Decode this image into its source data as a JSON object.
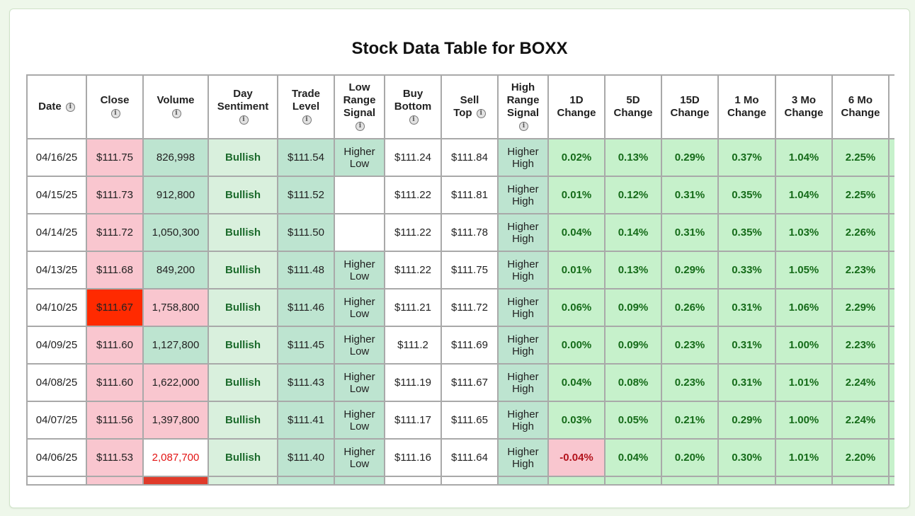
{
  "title": "Stock Data Table for BOXX",
  "columns": [
    {
      "key": "date",
      "lines": [
        "Date"
      ],
      "info": true,
      "inline_info": true
    },
    {
      "key": "close",
      "lines": [
        "Close"
      ],
      "info": true
    },
    {
      "key": "volume",
      "lines": [
        "Volume"
      ],
      "info": true
    },
    {
      "key": "day_sentiment",
      "lines": [
        "Day",
        "Sentiment"
      ],
      "info": true
    },
    {
      "key": "trade_level",
      "lines": [
        "Trade",
        "Level"
      ],
      "info": true
    },
    {
      "key": "low_range_signal",
      "lines": [
        "Low",
        "Range",
        "Signal"
      ],
      "info": true
    },
    {
      "key": "buy_bottom",
      "lines": [
        "Buy",
        "Bottom"
      ],
      "info": true
    },
    {
      "key": "sell_top",
      "lines": [
        "Sell",
        "Top"
      ],
      "info": true,
      "inline_info": true
    },
    {
      "key": "high_range_signal",
      "lines": [
        "High",
        "Range",
        "Signal"
      ],
      "info": true
    },
    {
      "key": "change_1d",
      "lines": [
        "1D",
        "Change"
      ],
      "info": false
    },
    {
      "key": "change_5d",
      "lines": [
        "5D",
        "Change"
      ],
      "info": false
    },
    {
      "key": "change_15d",
      "lines": [
        "15D",
        "Change"
      ],
      "info": false
    },
    {
      "key": "change_1mo",
      "lines": [
        "1 Mo",
        "Change"
      ],
      "info": false
    },
    {
      "key": "change_3mo",
      "lines": [
        "3 Mo",
        "Change"
      ],
      "info": false
    },
    {
      "key": "change_6mo",
      "lines": [
        "6 Mo",
        "Change"
      ],
      "info": false
    }
  ],
  "info_glyph": "i",
  "rows": [
    {
      "date": "04/16/25",
      "close": "$111.75",
      "close_style": "pink",
      "volume": "826,998",
      "volume_style": "teal",
      "day_sentiment": "Bullish",
      "trade_level": "$111.54",
      "low_range_signal": [
        "Higher",
        "Low"
      ],
      "buy_bottom": "$111.24",
      "sell_top": "$111.84",
      "high_range_signal": [
        "Higher",
        "High"
      ],
      "change_1d": "0.02%",
      "change_5d": "0.13%",
      "change_15d": "0.29%",
      "change_1mo": "0.37%",
      "change_3mo": "1.04%",
      "change_6mo": "2.25%"
    },
    {
      "date": "04/15/25",
      "close": "$111.73",
      "close_style": "pink",
      "volume": "912,800",
      "volume_style": "teal",
      "day_sentiment": "Bullish",
      "trade_level": "$111.52",
      "low_range_signal": [],
      "buy_bottom": "$111.22",
      "sell_top": "$111.81",
      "high_range_signal": [
        "Higher",
        "High"
      ],
      "change_1d": "0.01%",
      "change_5d": "0.12%",
      "change_15d": "0.31%",
      "change_1mo": "0.35%",
      "change_3mo": "1.04%",
      "change_6mo": "2.25%"
    },
    {
      "date": "04/14/25",
      "close": "$111.72",
      "close_style": "pink",
      "volume": "1,050,300",
      "volume_style": "teal",
      "day_sentiment": "Bullish",
      "trade_level": "$111.50",
      "low_range_signal": [],
      "buy_bottom": "$111.22",
      "sell_top": "$111.78",
      "high_range_signal": [
        "Higher",
        "High"
      ],
      "change_1d": "0.04%",
      "change_5d": "0.14%",
      "change_15d": "0.31%",
      "change_1mo": "0.35%",
      "change_3mo": "1.03%",
      "change_6mo": "2.26%"
    },
    {
      "date": "04/13/25",
      "close": "$111.68",
      "close_style": "pink",
      "volume": "849,200",
      "volume_style": "teal",
      "day_sentiment": "Bullish",
      "trade_level": "$111.48",
      "low_range_signal": [
        "Higher",
        "Low"
      ],
      "buy_bottom": "$111.22",
      "sell_top": "$111.75",
      "high_range_signal": [
        "Higher",
        "High"
      ],
      "change_1d": "0.01%",
      "change_5d": "0.13%",
      "change_15d": "0.29%",
      "change_1mo": "0.33%",
      "change_3mo": "1.05%",
      "change_6mo": "2.23%"
    },
    {
      "date": "04/10/25",
      "close": "$111.67",
      "close_style": "red",
      "volume": "1,758,800",
      "volume_style": "pink",
      "day_sentiment": "Bullish",
      "trade_level": "$111.46",
      "low_range_signal": [
        "Higher",
        "Low"
      ],
      "buy_bottom": "$111.21",
      "sell_top": "$111.72",
      "high_range_signal": [
        "Higher",
        "High"
      ],
      "change_1d": "0.06%",
      "change_5d": "0.09%",
      "change_15d": "0.26%",
      "change_1mo": "0.31%",
      "change_3mo": "1.06%",
      "change_6mo": "2.29%"
    },
    {
      "date": "04/09/25",
      "close": "$111.60",
      "close_style": "pink",
      "volume": "1,127,800",
      "volume_style": "teal",
      "day_sentiment": "Bullish",
      "trade_level": "$111.45",
      "low_range_signal": [
        "Higher",
        "Low"
      ],
      "buy_bottom": "$111.2",
      "sell_top": "$111.69",
      "high_range_signal": [
        "Higher",
        "High"
      ],
      "change_1d": "0.00%",
      "change_5d": "0.09%",
      "change_15d": "0.23%",
      "change_1mo": "0.31%",
      "change_3mo": "1.00%",
      "change_6mo": "2.23%"
    },
    {
      "date": "04/08/25",
      "close": "$111.60",
      "close_style": "pink",
      "volume": "1,622,000",
      "volume_style": "pink",
      "day_sentiment": "Bullish",
      "trade_level": "$111.43",
      "low_range_signal": [
        "Higher",
        "Low"
      ],
      "buy_bottom": "$111.19",
      "sell_top": "$111.67",
      "high_range_signal": [
        "Higher",
        "High"
      ],
      "change_1d": "0.04%",
      "change_5d": "0.08%",
      "change_15d": "0.23%",
      "change_1mo": "0.31%",
      "change_3mo": "1.01%",
      "change_6mo": "2.24%"
    },
    {
      "date": "04/07/25",
      "close": "$111.56",
      "close_style": "pink",
      "volume": "1,397,800",
      "volume_style": "pink",
      "day_sentiment": "Bullish",
      "trade_level": "$111.41",
      "low_range_signal": [
        "Higher",
        "Low"
      ],
      "buy_bottom": "$111.17",
      "sell_top": "$111.65",
      "high_range_signal": [
        "Higher",
        "High"
      ],
      "change_1d": "0.03%",
      "change_5d": "0.05%",
      "change_15d": "0.21%",
      "change_1mo": "0.29%",
      "change_3mo": "1.00%",
      "change_6mo": "2.24%"
    },
    {
      "date": "04/06/25",
      "close": "$111.53",
      "close_style": "pink",
      "volume": "2,087,700",
      "volume_style": "white-red",
      "day_sentiment": "Bullish",
      "trade_level": "$111.40",
      "low_range_signal": [
        "Higher",
        "Low"
      ],
      "buy_bottom": "$111.16",
      "sell_top": "$111.64",
      "high_range_signal": [
        "Higher",
        "High"
      ],
      "change_1d": "-0.04%",
      "change_1d_negative": true,
      "change_5d": "0.04%",
      "change_15d": "0.20%",
      "change_1mo": "0.30%",
      "change_3mo": "1.01%",
      "change_6mo": "2.20%"
    }
  ],
  "colors": {
    "page_bg": "#eef7ea",
    "pink": "#f9c6cf",
    "red": "#ff2a00",
    "teal": "#bde4d0",
    "sentiment_bg": "#d9f0dd",
    "change_bg": "#c6f1cb",
    "positive_text": "#156b19",
    "negative_text": "#b3121b"
  }
}
